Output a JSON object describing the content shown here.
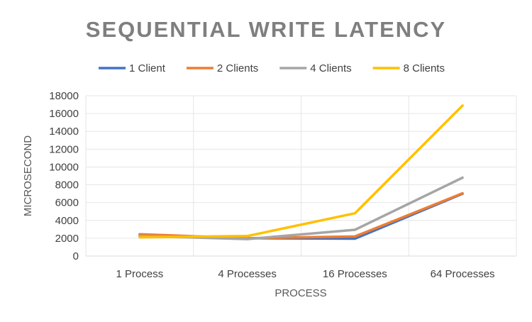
{
  "chart_data": {
    "type": "line",
    "title": "SEQUENTIAL WRITE LATENCY",
    "xlabel": "PROCESS",
    "ylabel": "MICROSECOND",
    "categories": [
      "1 Process",
      "4 Processes",
      "16 Processes",
      "64 Processes"
    ],
    "ylim": [
      0,
      18000
    ],
    "yticks": [
      0,
      2000,
      4000,
      6000,
      8000,
      10000,
      12000,
      14000,
      16000,
      18000
    ],
    "grid": true,
    "legend_position": "top",
    "series": [
      {
        "name": "1 Client",
        "color": "#4472c4",
        "values": [
          2400,
          2000,
          1950,
          7000
        ]
      },
      {
        "name": "2 Clients",
        "color": "#ed7d31",
        "values": [
          2450,
          2000,
          2200,
          7050
        ]
      },
      {
        "name": "4 Clients",
        "color": "#a5a5a5",
        "values": [
          2250,
          1900,
          2950,
          8800
        ]
      },
      {
        "name": "8 Clients",
        "color": "#ffc000",
        "values": [
          2100,
          2250,
          4800,
          16900
        ]
      }
    ]
  }
}
